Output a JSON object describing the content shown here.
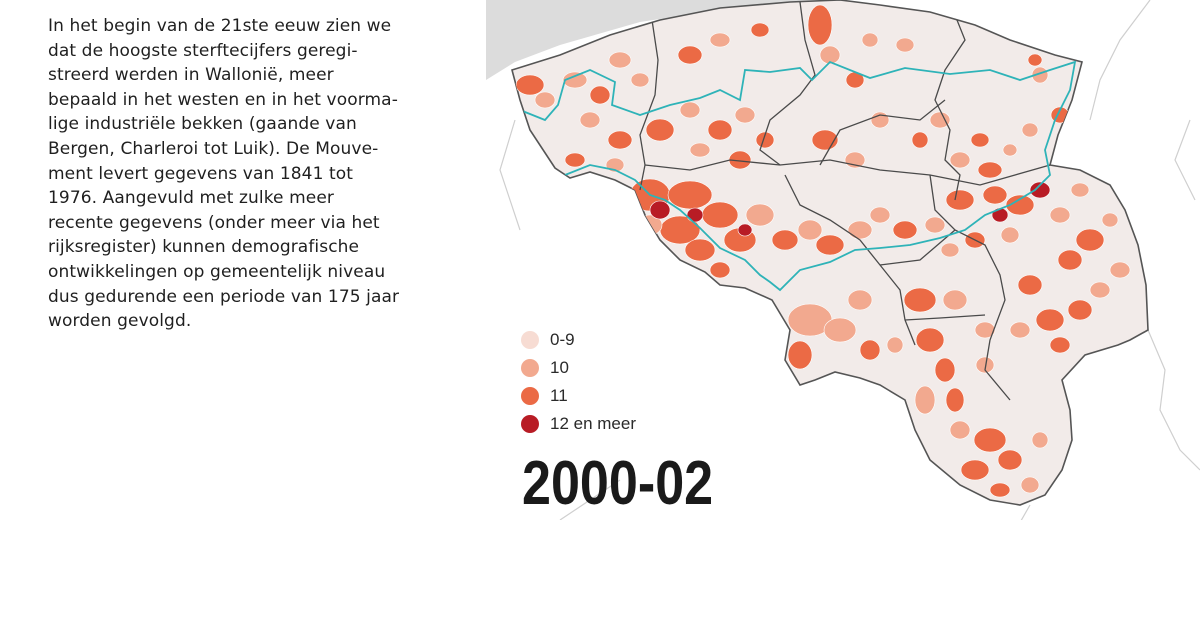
{
  "intro_text": "In het begin van de 21ste eeuw zien we dat de hoogste sterftecijfers geregi-streerd werden in Wallonië, meer bepaald in het westen en in het voorma-lige industriële bekken (gaande van Bergen, Charleroi tot Luik). De Mouve-ment levert gegevens van 1841 tot 1976. Aangevuld met zulke meer recente gegevens (onder meer via het rijksregister) kunnen demografische ontwikkelingen op gemeentelijk niveau dus gedurende een periode van 175 jaar worden gevolgd.",
  "intro_lines": [
    "In het begin van de 21ste eeuw zien we",
    "dat de hoogste sterftecijfers geregi-",
    "streerd werden in Wallonië, meer",
    "bepaald in het westen en in het voorma-",
    "lige industriële bekken (gaande van",
    "Bergen, Charleroi tot Luik). De Mouve-",
    "ment levert gegevens van 1841 tot",
    "1976. Aangevuld met zulke meer",
    "recente gegevens (onder meer via het",
    "rijksregister) kunnen demografische",
    "ontwikkelingen op gemeentelijk niveau",
    "dus gedurende een periode van 175 jaar",
    "worden gevolgd."
  ],
  "legend": [
    {
      "label": "0-9",
      "color": "#f7dcd3"
    },
    {
      "label": "10",
      "color": "#f2a98f"
    },
    {
      "label": "11",
      "color": "#eb6a45"
    },
    {
      "label": "12 en meer",
      "color": "#b81c25"
    }
  ],
  "period": "2000-02",
  "colors": {
    "base_municipality": "#f2ebe9",
    "sea": "#dcdcdc",
    "region_border": "#2eb3b8",
    "province_border": "#4a4a4a",
    "neighbour_border": "#cfcfcf"
  }
}
